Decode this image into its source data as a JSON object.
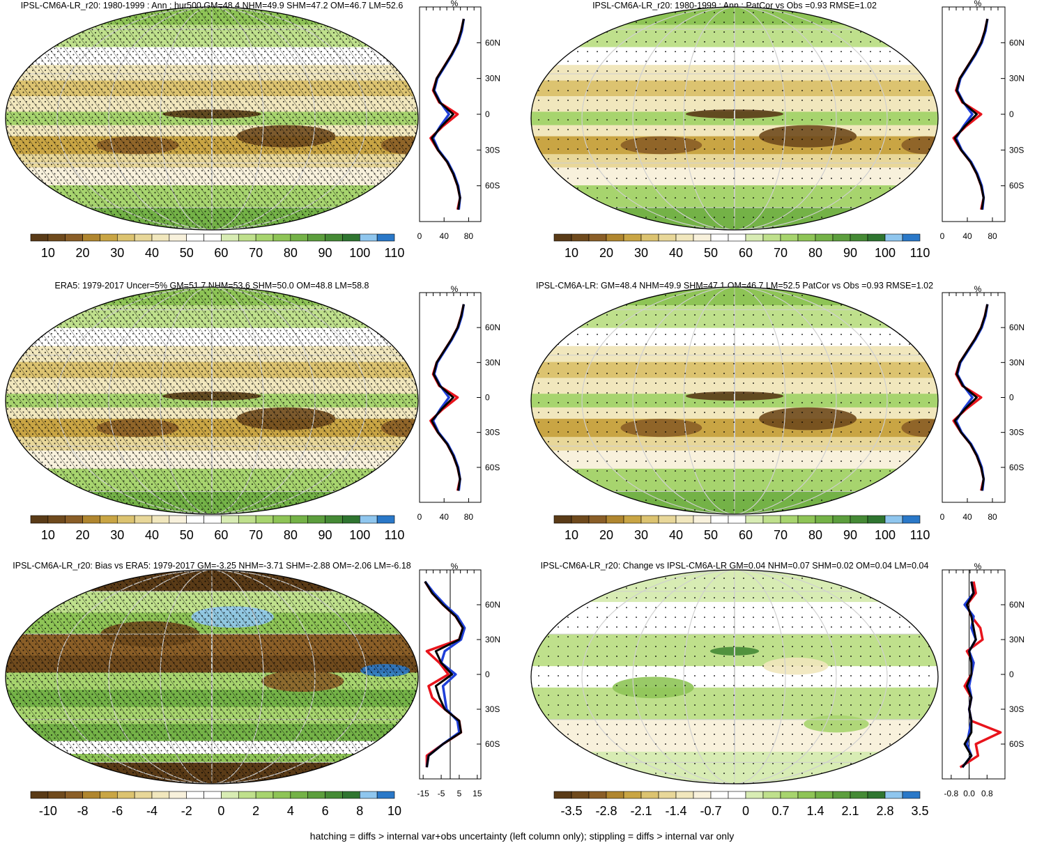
{
  "colors": {
    "scale": [
      "#5a3b17",
      "#6f4a1d",
      "#8a5e27",
      "#b0862f",
      "#c9a544",
      "#dcc370",
      "#e8d799",
      "#f1e7bd",
      "#f8f1dc",
      "#ffffff",
      "#ffffff",
      "#d8ecb4",
      "#bfe08c",
      "#a7d46e",
      "#8ec456",
      "#74b247",
      "#5c9e3d",
      "#458a35",
      "#2f7530",
      "#8fc6ee",
      "#2a78c8"
    ],
    "obs_line": "#1f3fd8",
    "model_line": "#e8141c",
    "mean_line": "#000000",
    "land_outline": "#000000"
  },
  "panels": [
    {
      "id": "model-mean",
      "title": "IPSL-CM6A-LR_r20: 1980-1999 : Ann : hur500 GM=48.4 NHM=49.9 SHM=47.2 OM=46.7 LM=52.6",
      "kind": "abs",
      "colorbar_labels": [
        "10",
        "20",
        "30",
        "40",
        "50",
        "60",
        "70",
        "80",
        "90",
        "100",
        "110"
      ],
      "hatching": true,
      "stippling": "dense"
    },
    {
      "id": "model-patcor",
      "title": "IPSL-CM6A-LR_r20: 1980-1999 : Ann : PatCor vs Obs =0.93 RMSE=1.02",
      "kind": "abs",
      "colorbar_labels": [
        "10",
        "20",
        "30",
        "40",
        "50",
        "60",
        "70",
        "80",
        "90",
        "100",
        "110"
      ],
      "hatching": false,
      "stippling": "sparse"
    },
    {
      "id": "era5",
      "title": "ERA5: 1979-2017 Uncer=5% GM=51.7 NHM=53.6 SHM=50.0 OM=48.8 LM=58.8",
      "kind": "abs",
      "colorbar_labels": [
        "10",
        "20",
        "30",
        "40",
        "50",
        "60",
        "70",
        "80",
        "90",
        "100",
        "110"
      ],
      "hatching": true,
      "stippling": "dense"
    },
    {
      "id": "ensemble",
      "title": "IPSL-CM6A-LR: GM=48.4 NHM=49.9 SHM=47.1 OM=46.7 LM=52.5 PatCor vs Obs =0.93 RMSE=1.02",
      "kind": "abs",
      "colorbar_labels": [
        "10",
        "20",
        "30",
        "40",
        "50",
        "60",
        "70",
        "80",
        "90",
        "100",
        "110"
      ],
      "hatching": false,
      "stippling": "sparse"
    },
    {
      "id": "bias",
      "title": "IPSL-CM6A-LR_r20: Bias vs ERA5: 1979-2017 GM=-3.25 NHM=-3.71 SHM=-2.88 OM=-2.06 LM=-6.18",
      "kind": "diff",
      "colorbar_labels": [
        "-10",
        "-8",
        "-6",
        "-4",
        "-2",
        "0",
        "2",
        "4",
        "6",
        "8",
        "10"
      ],
      "hatching": true,
      "stippling": "dense"
    },
    {
      "id": "change",
      "title": "IPSL-CM6A-LR_r20: Change vs IPSL-CM6A-LR GM=0.04 NHM=0.07 SHM=0.02 OM=0.04 LM=0.04",
      "kind": "change",
      "colorbar_labels": [
        "-3.5",
        "-2.8",
        "-2.1",
        "-1.4",
        "-0.7",
        "0",
        "0.7",
        "1.4",
        "2.1",
        "2.8",
        "3.5"
      ],
      "hatching": false,
      "stippling": "sparse"
    }
  ],
  "chart_data": {
    "type": "heatmap",
    "layout": "3 rows x 2 columns of global maps, each with zonal-mean line plot at right",
    "variable": "hur500",
    "lat_tick_labels": [
      "60N",
      "30N",
      "0",
      "30S",
      "60S"
    ],
    "profile_unit": "%",
    "profile_x_ticks": {
      "abs": [
        "0",
        "40",
        "80"
      ],
      "bias": [
        "-15",
        "-5",
        "5",
        "15"
      ],
      "change": [
        "-0.8",
        "0.0",
        "0.8"
      ]
    },
    "zonal_mean_profiles": {
      "lat": [
        80,
        70,
        60,
        50,
        40,
        30,
        20,
        10,
        0,
        -10,
        -20,
        -30,
        -40,
        -50,
        -60,
        -70,
        -80
      ],
      "abs_model": [
        72,
        68,
        62,
        52,
        40,
        28,
        22,
        32,
        62,
        38,
        18,
        30,
        45,
        55,
        62,
        66,
        62
      ],
      "abs_obs": [
        72,
        69,
        63,
        53,
        41,
        29,
        24,
        34,
        48,
        34,
        22,
        31,
        46,
        56,
        63,
        66,
        64
      ],
      "abs_mean": [
        72,
        68,
        62,
        52,
        40,
        28,
        23,
        33,
        55,
        36,
        20,
        30,
        45,
        55,
        62,
        66,
        63
      ],
      "bias_model": [
        -14,
        -10,
        -4,
        3,
        7,
        5,
        -13,
        -6,
        -1,
        -12,
        -10,
        -3,
        5,
        6,
        -4,
        -13,
        -13
      ],
      "bias_obs": [
        -14,
        -9,
        -3,
        4,
        8,
        6,
        -3,
        -5,
        3,
        -4,
        -3,
        -2,
        4,
        5,
        -4,
        -12,
        -13
      ],
      "bias_mean": [
        -14,
        -10,
        -4,
        3,
        7,
        5,
        -8,
        -5,
        1,
        -8,
        -6,
        -3,
        5,
        6,
        -4,
        -12,
        -13
      ],
      "change_model": [
        0.2,
        0.3,
        -0.1,
        0.1,
        0.5,
        0.6,
        -0.1,
        0.2,
        0.1,
        -0.2,
        0.1,
        0.0,
        0.1,
        1.4,
        0.3,
        0.4,
        -0.4
      ],
      "change_obs": [
        0.1,
        0.2,
        -0.2,
        0.2,
        0.1,
        0.3,
        0.0,
        0.2,
        0.1,
        0.0,
        0.1,
        0.0,
        0.1,
        0.0,
        -0.1,
        0.1,
        -0.3
      ],
      "change_mean": [
        0.1,
        0.2,
        -0.1,
        0.1,
        0.2,
        0.3,
        0.0,
        0.1,
        0.1,
        -0.1,
        0.1,
        0.0,
        0.1,
        0.1,
        -0.2,
        0.1,
        -0.3
      ]
    }
  },
  "footer": "hatching = diffs > internal var+obs uncertainty (left column only); stippling = diffs > internal var only"
}
